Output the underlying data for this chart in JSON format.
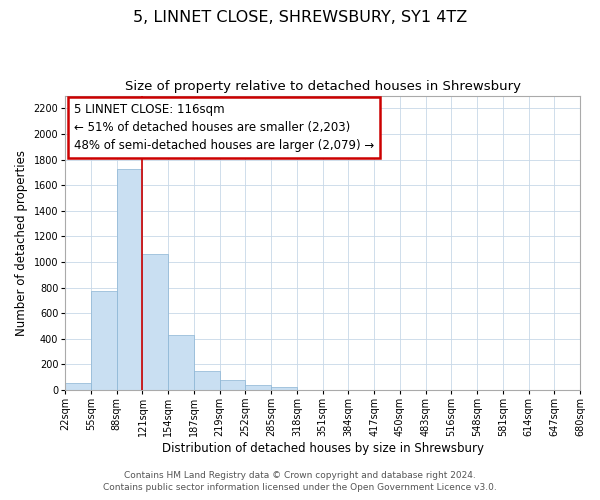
{
  "title": "5, LINNET CLOSE, SHREWSBURY, SY1 4TZ",
  "subtitle": "Size of property relative to detached houses in Shrewsbury",
  "bar_heights": [
    57,
    770,
    1730,
    1060,
    430,
    147,
    82,
    40,
    25,
    0,
    0,
    0,
    0,
    0,
    0,
    0,
    0,
    0,
    0,
    0
  ],
  "bin_labels": [
    "22sqm",
    "55sqm",
    "88sqm",
    "121sqm",
    "154sqm",
    "187sqm",
    "219sqm",
    "252sqm",
    "285sqm",
    "318sqm",
    "351sqm",
    "384sqm",
    "417sqm",
    "450sqm",
    "483sqm",
    "516sqm",
    "548sqm",
    "581sqm",
    "614sqm",
    "647sqm",
    "680sqm"
  ],
  "bar_color": "#c9dff2",
  "bar_edge_color": "#8ab4d4",
  "vline_x_bin": 3,
  "vline_color": "#cc0000",
  "annotation_title": "5 LINNET CLOSE: 116sqm",
  "annotation_line1": "← 51% of detached houses are smaller (2,203)",
  "annotation_line2": "48% of semi-detached houses are larger (2,079) →",
  "annotation_box_color": "white",
  "annotation_box_edge": "#cc0000",
  "ylabel": "Number of detached properties",
  "xlabel": "Distribution of detached houses by size in Shrewsbury",
  "ylim": [
    0,
    2300
  ],
  "yticks": [
    0,
    200,
    400,
    600,
    800,
    1000,
    1200,
    1400,
    1600,
    1800,
    2000,
    2200
  ],
  "footer1": "Contains HM Land Registry data © Crown copyright and database right 2024.",
  "footer2": "Contains public sector information licensed under the Open Government Licence v3.0.",
  "title_fontsize": 11.5,
  "subtitle_fontsize": 9.5,
  "axis_label_fontsize": 8.5,
  "tick_fontsize": 7,
  "annotation_fontsize": 8.5,
  "footer_fontsize": 6.5,
  "n_bars": 20,
  "n_ticks": 21
}
